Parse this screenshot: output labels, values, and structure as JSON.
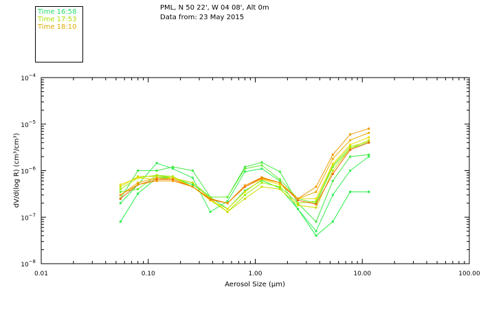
{
  "header": {
    "location": "PML, N 50 22', W 04 08', Alt 0m",
    "date": "Data from: 23 May 2015"
  },
  "legend": [
    {
      "label": "Time 16:58",
      "color": "#22dd66"
    },
    {
      "label": "Time 17:53",
      "color": "#aadd00"
    },
    {
      "label": "Time 18:10",
      "color": "#ddaa00"
    }
  ],
  "chart_data": {
    "type": "line",
    "xlabel": "Aerosol Size (μm)",
    "ylabel": "dV/d(log R) (cm³/cm³)",
    "xscale": "log",
    "yscale": "log",
    "xlim": [
      0.01,
      100
    ],
    "ylim": [
      1e-08,
      0.0001
    ],
    "xticks": [
      {
        "value": 0.01,
        "label": "0.01"
      },
      {
        "value": 0.1,
        "label": "0.10"
      },
      {
        "value": 1,
        "label": "1.00"
      },
      {
        "value": 10,
        "label": "10.00"
      },
      {
        "value": 100,
        "label": "100.00"
      }
    ],
    "yticks": [
      {
        "exp": -8,
        "label": "10",
        "sup": "−8"
      },
      {
        "exp": -7,
        "label": "10",
        "sup": "−7"
      },
      {
        "exp": -6,
        "label": "10",
        "sup": "−6"
      },
      {
        "exp": -5,
        "label": "10",
        "sup": "−5"
      },
      {
        "exp": -4,
        "label": "10",
        "sup": "−4"
      }
    ],
    "x": [
      0.055,
      0.08,
      0.12,
      0.17,
      0.26,
      0.38,
      0.55,
      0.8,
      1.15,
      1.7,
      2.5,
      3.7,
      5.3,
      7.7,
      11.5
    ],
    "series": [
      {
        "color": "#22ee44",
        "values": [
          8e-08,
          3.2e-07,
          7e-07,
          7e-07,
          5e-07,
          2.7e-07,
          1.5e-07,
          3.7e-07,
          6.2e-07,
          4.2e-07,
          1.5e-07,
          4e-08,
          8e-08,
          3.5e-07,
          3.5e-07
        ]
      },
      {
        "color": "#33ee55",
        "values": [
          2e-07,
          5e-07,
          1.45e-06,
          1.1e-06,
          7e-07,
          1.3e-07,
          2.2e-07,
          9.5e-07,
          1.1e-06,
          6e-07,
          1.5e-07,
          5e-08,
          3e-07,
          1e-06,
          2e-06
        ]
      },
      {
        "color": "#44e644",
        "values": [
          2.5e-07,
          1e-06,
          1e-06,
          1.2e-06,
          1e-06,
          2.7e-07,
          2.7e-07,
          1.2e-06,
          1.5e-06,
          9.5e-07,
          2e-07,
          8e-08,
          6e-07,
          2e-06,
          2.2e-06
        ]
      },
      {
        "color": "#66ee33",
        "values": [
          3.5e-07,
          4e-07,
          8e-07,
          7e-07,
          5.5e-07,
          2.7e-07,
          2.7e-07,
          1.1e-06,
          1.3e-06,
          6.5e-07,
          2.5e-07,
          2e-07,
          1.2e-06,
          3e-06,
          4e-06
        ]
      },
      {
        "color": "#99ee00",
        "values": [
          4e-07,
          7e-07,
          8e-07,
          7.5e-07,
          4.5e-07,
          2.3e-07,
          1.3e-07,
          3e-07,
          5.5e-07,
          4.5e-07,
          2e-07,
          2.2e-07,
          1.3e-06,
          3.3e-06,
          4.2e-06
        ]
      },
      {
        "color": "#ccdd00",
        "values": [
          4.5e-07,
          7.5e-07,
          7.5e-07,
          7e-07,
          5.5e-07,
          2.5e-07,
          1.3e-07,
          2.5e-07,
          4.5e-07,
          4e-07,
          1.8e-07,
          1.6e-07,
          1e-06,
          3e-06,
          4.5e-06
        ]
      },
      {
        "color": "#eedd00",
        "values": [
          5e-07,
          7e-07,
          6.5e-07,
          7e-07,
          4.5e-07,
          2.3e-07,
          1.5e-07,
          3.5e-07,
          6.5e-07,
          5e-07,
          2.5e-07,
          2.5e-07,
          1.4e-06,
          3.6e-06,
          5.2e-06
        ]
      },
      {
        "color": "#eeaa00",
        "values": [
          3e-07,
          5.5e-07,
          7e-07,
          6.5e-07,
          4.5e-07,
          2.5e-07,
          2e-07,
          4.5e-07,
          6.7e-07,
          5.5e-07,
          2.5e-07,
          3.5e-07,
          1.8e-06,
          4.5e-06,
          6.5e-06
        ]
      },
      {
        "color": "#ee6600",
        "values": [
          2.5e-07,
          5e-07,
          6.5e-07,
          6.5e-07,
          4.5e-07,
          2.4e-07,
          2e-07,
          4.5e-07,
          7e-07,
          5.5e-07,
          2.3e-07,
          1.9e-07,
          8.5e-07,
          2.8e-06,
          4e-06
        ]
      },
      {
        "color": "#ee9900",
        "values": [
          3e-07,
          5e-07,
          6e-07,
          6e-07,
          4.5e-07,
          2.5e-07,
          2e-07,
          4.8e-07,
          7.2e-07,
          5.5e-07,
          2.5e-07,
          4.5e-07,
          2.2e-06,
          6e-06,
          8e-06
        ]
      }
    ]
  }
}
